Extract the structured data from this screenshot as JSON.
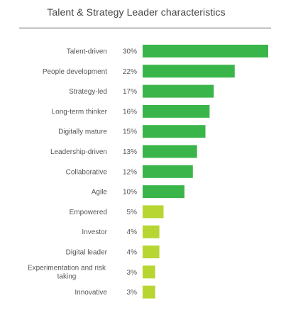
{
  "chart_data": {
    "type": "bar",
    "orientation": "horizontal",
    "title": "Talent & Strategy Leader characteristics",
    "value_suffix": "%",
    "xlim": [
      0,
      30
    ],
    "grid": false,
    "categories": [
      "Talent-driven",
      "People development",
      "Strategy-led",
      "Long-term thinker",
      "Digitally mature",
      "Leadership-driven",
      "Collaborative",
      "Agile",
      "Empowered",
      "Investor",
      "Digital leader",
      "Experimentation and risk taking",
      "Innovative"
    ],
    "values": [
      30,
      22,
      17,
      16,
      15,
      13,
      12,
      10,
      5,
      4,
      4,
      3,
      3
    ],
    "value_labels": [
      "30%",
      "22%",
      "17%",
      "16%",
      "15%",
      "13%",
      "12%",
      "10%",
      "5%",
      "4%",
      "4%",
      "3%",
      "3%"
    ],
    "bar_colors": [
      "#3ab54a",
      "#3ab54a",
      "#3ab54a",
      "#3ab54a",
      "#3ab54a",
      "#3ab54a",
      "#3ab54a",
      "#3ab54a",
      "#b7d632",
      "#b7d632",
      "#b7d632",
      "#b7d632",
      "#b7d632"
    ]
  }
}
